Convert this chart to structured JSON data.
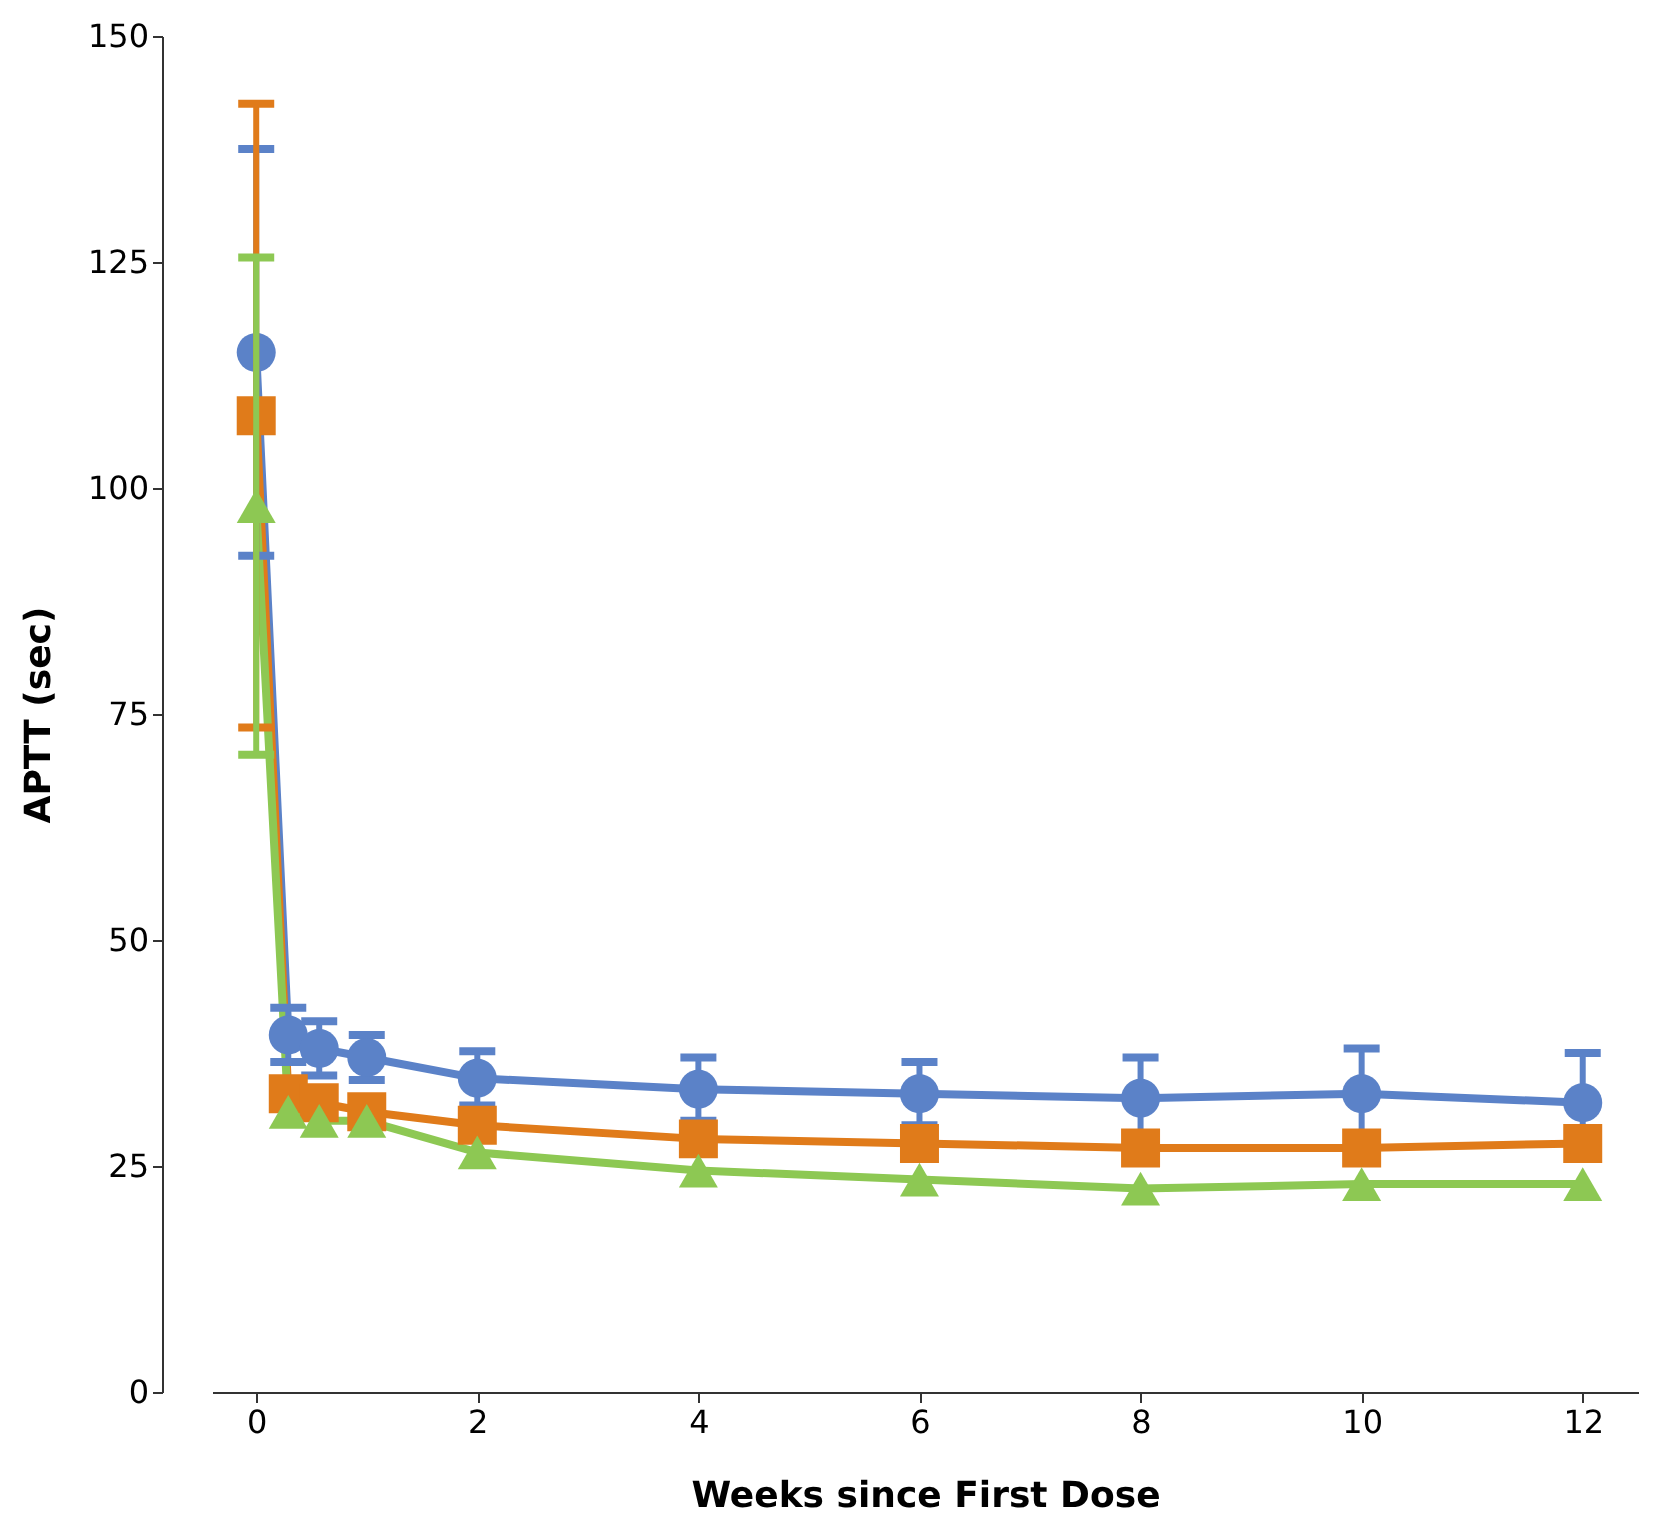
{
  "chart_data": {
    "type": "line",
    "xlabel": "Weeks since First Dose",
    "ylabel": "APTT (sec)",
    "x": [
      0,
      0.29,
      0.57,
      1,
      2,
      4,
      6,
      8,
      10,
      12
    ],
    "xlim": [
      -0.4,
      12.5
    ],
    "xticks": [
      0,
      2,
      4,
      6,
      8,
      10,
      12
    ],
    "ylim": [
      0,
      150
    ],
    "yticks": [
      0,
      25,
      50,
      75,
      100,
      125,
      150
    ],
    "grid": false,
    "series": [
      {
        "color": "#5b82c8",
        "marker": "circle",
        "values": [
          115,
          39.5,
          38,
          37,
          34.7,
          33.5,
          33,
          32.5,
          33,
          32
        ],
        "errors": [
          22.5,
          3,
          3,
          2.5,
          3,
          3.5,
          3.5,
          4.5,
          5,
          5.5
        ]
      },
      {
        "color": "#e07b1a",
        "marker": "square",
        "values": [
          108,
          33,
          32,
          31,
          29.5,
          28,
          27.5,
          27,
          27,
          27.5
        ],
        "errors": [
          34.5,
          null,
          null,
          null,
          null,
          null,
          null,
          null,
          null,
          null
        ]
      },
      {
        "color": "#8dc853",
        "marker": "triangle",
        "values": [
          98,
          31,
          30,
          30,
          26.5,
          24.5,
          23.5,
          22.5,
          23,
          23
        ],
        "errors": [
          27.5,
          null,
          null,
          null,
          null,
          null,
          null,
          null,
          null,
          null
        ]
      }
    ]
  }
}
